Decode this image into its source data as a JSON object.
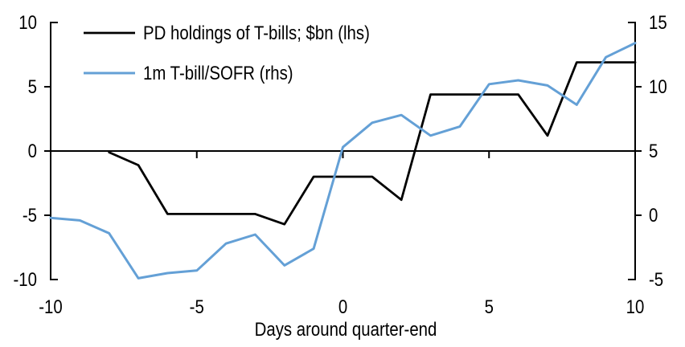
{
  "chart_data": {
    "type": "line",
    "title": "",
    "x_axis": {
      "label": "Days around quarter-end",
      "ticks": [
        -10,
        -5,
        0,
        5,
        10
      ],
      "range": [
        -10,
        10
      ],
      "zero_line": true
    },
    "left_axis": {
      "ticks": [
        10,
        5,
        0,
        -5,
        -10
      ],
      "range": [
        -10,
        10
      ]
    },
    "right_axis": {
      "ticks": [
        15,
        10,
        5,
        0,
        -5
      ],
      "range": [
        -5,
        15
      ]
    },
    "grid": "none",
    "legend_position": "top-left",
    "series": [
      {
        "name": "PD holdings of T-bills; $bn (lhs)",
        "axis": "left",
        "color": "#000000",
        "x": [
          -8,
          -7,
          -6,
          -5,
          -4,
          -3,
          -2,
          -1,
          0,
          1,
          2,
          3,
          4,
          5,
          6,
          7,
          8,
          9,
          10
        ],
        "values": [
          -0.1,
          -1.1,
          -4.9,
          -4.9,
          -4.9,
          -4.9,
          -5.7,
          -2.0,
          -2.0,
          -2.0,
          -3.8,
          4.4,
          4.4,
          4.4,
          4.4,
          1.2,
          6.9,
          6.9,
          6.9
        ]
      },
      {
        "name": "1m T-bill/SOFR (rhs)",
        "axis": "right",
        "color": "#64A0D6",
        "x": [
          -10,
          -9,
          -8,
          -7,
          -6,
          -5,
          -4,
          -3,
          -2,
          -1,
          0,
          1,
          2,
          3,
          4,
          5,
          6,
          7,
          8,
          9,
          10
        ],
        "values": [
          -0.2,
          -0.4,
          -1.4,
          -4.9,
          -4.5,
          -4.3,
          -2.2,
          -1.5,
          -3.9,
          -2.6,
          5.3,
          7.2,
          7.8,
          6.2,
          6.9,
          10.2,
          10.5,
          10.1,
          8.6,
          12.3,
          13.4
        ]
      }
    ]
  }
}
